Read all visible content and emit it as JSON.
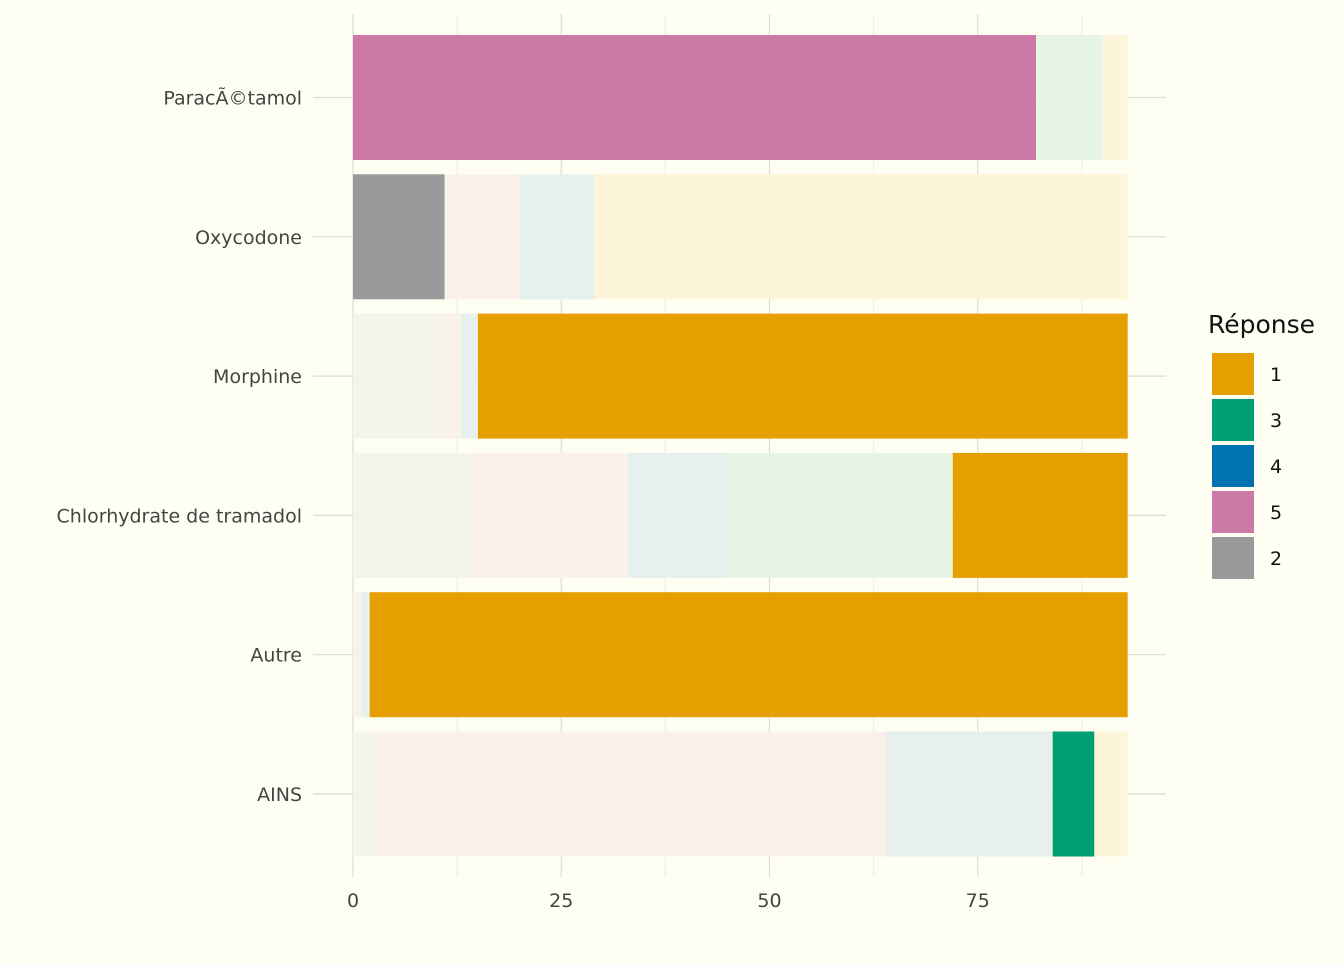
{
  "chart_data": {
    "type": "bar",
    "orientation": "horizontal",
    "stacked": true,
    "categories": [
      "ParacÃ©tamol",
      "Oxycodone",
      "Morphine",
      "Chlorhydrate de tramadol",
      "Autre",
      "AINS"
    ],
    "xlim": [
      0,
      93
    ],
    "x_ticks": [
      0,
      25,
      50,
      75
    ],
    "xlabel": "",
    "ylabel": "",
    "grid": true,
    "legend": {
      "title": "Réponse",
      "position": "right",
      "entries": [
        {
          "label": "1",
          "color": "#E69F00"
        },
        {
          "label": "3",
          "color": "#009E73"
        },
        {
          "label": "4",
          "color": "#0072B2"
        },
        {
          "label": "5",
          "color": "#CC79A7"
        },
        {
          "label": "2",
          "color": "#999999"
        }
      ]
    },
    "rows": [
      {
        "category": "ParacÃ©tamol",
        "highlighted": "5",
        "segments": [
          {
            "response": "5",
            "value": 82
          },
          {
            "response": "3",
            "value": 8
          },
          {
            "response": "1",
            "value": 3
          }
        ]
      },
      {
        "category": "Oxycodone",
        "highlighted": "2",
        "segments": [
          {
            "response": "2",
            "value": 11
          },
          {
            "response": "5",
            "value": 9
          },
          {
            "response": "4",
            "value": 9
          },
          {
            "response": "1",
            "value": 64
          }
        ]
      },
      {
        "category": "Morphine",
        "highlighted": "1",
        "segments": [
          {
            "response": "2",
            "value": 11
          },
          {
            "response": "5",
            "value": 2
          },
          {
            "response": "4",
            "value": 2
          },
          {
            "response": "1",
            "value": 78
          }
        ]
      },
      {
        "category": "Chlorhydrate de tramadol",
        "highlighted": "1",
        "segments": [
          {
            "response": "2",
            "value": 14
          },
          {
            "response": "5",
            "value": 19
          },
          {
            "response": "4",
            "value": 12
          },
          {
            "response": "3",
            "value": 27
          },
          {
            "response": "1",
            "value": 21
          }
        ]
      },
      {
        "category": "Autre",
        "highlighted": "1",
        "segments": [
          {
            "response": "5",
            "value": 1
          },
          {
            "response": "4",
            "value": 1
          },
          {
            "response": "1",
            "value": 91
          }
        ]
      },
      {
        "category": "AINS",
        "highlighted": "3",
        "segments": [
          {
            "response": "2",
            "value": 3
          },
          {
            "response": "5",
            "value": 61
          },
          {
            "response": "4",
            "value": 20
          },
          {
            "response": "3",
            "value": 5
          },
          {
            "response": "1",
            "value": 4
          }
        ]
      }
    ]
  }
}
